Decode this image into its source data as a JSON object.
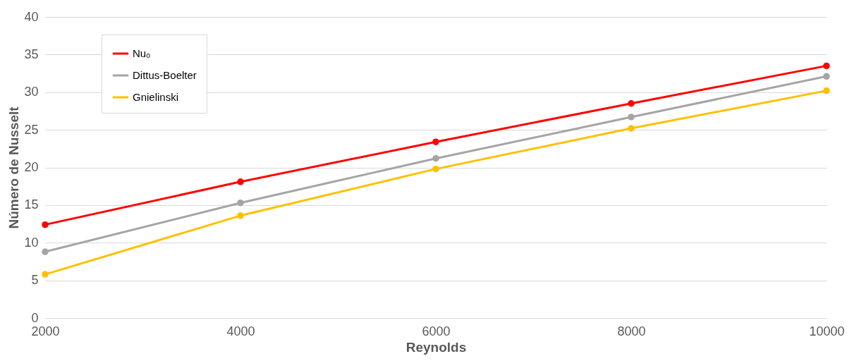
{
  "chart_data": {
    "type": "line",
    "xlabel": "Reynolds",
    "ylabel": "Número de Nusselt",
    "x": [
      2000,
      4000,
      6000,
      8000,
      10000
    ],
    "series": [
      {
        "name": "Nuₒ",
        "color": "#ff0000",
        "values": [
          12.4,
          18.1,
          23.4,
          28.5,
          33.5
        ]
      },
      {
        "name": "Dittus-Boelter",
        "color": "#a5a5a5",
        "values": [
          8.8,
          15.3,
          21.2,
          26.7,
          32.1
        ]
      },
      {
        "name": "Gnielinski",
        "color": "#ffc000",
        "values": [
          5.8,
          13.6,
          19.8,
          25.2,
          30.2
        ]
      }
    ],
    "xlim": [
      2000,
      10000
    ],
    "xticks": [
      2000,
      4000,
      6000,
      8000,
      10000
    ],
    "ylim": [
      0,
      40
    ],
    "yticks": [
      0,
      5,
      10,
      15,
      20,
      25,
      30,
      35,
      40
    ],
    "grid": "y",
    "legend": "top left",
    "marker": "circle",
    "line_style": "solid"
  }
}
